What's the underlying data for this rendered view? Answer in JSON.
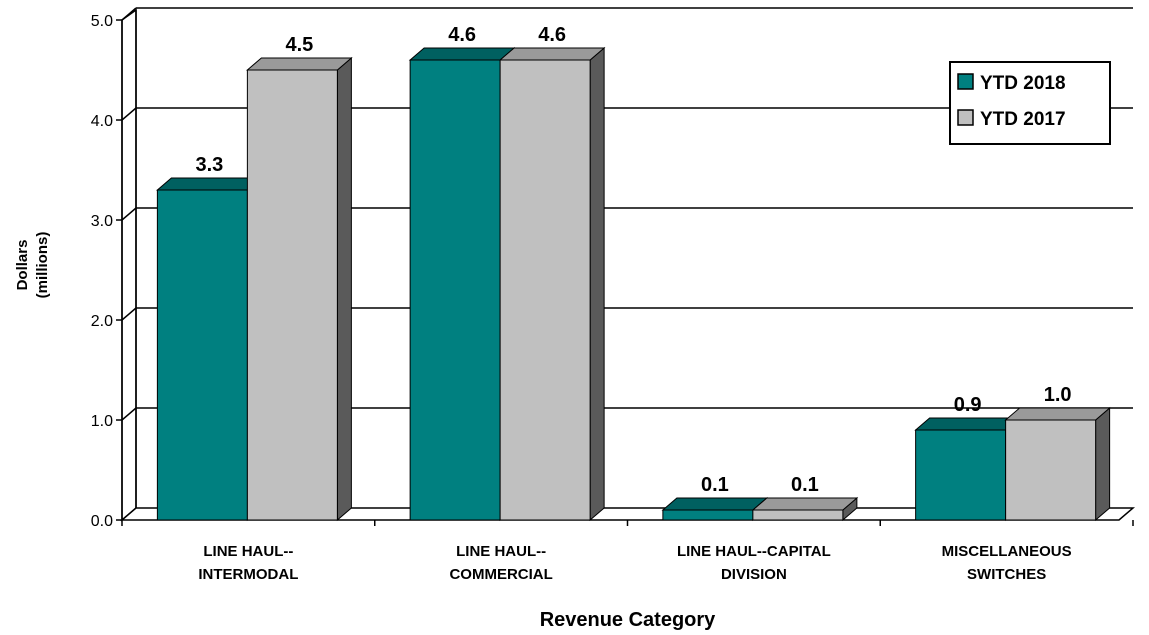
{
  "chart_data": {
    "type": "bar",
    "title": "",
    "xlabel": "Revenue Category",
    "ylabel": [
      "Dollars",
      "(millions)"
    ],
    "ylim": [
      0,
      5
    ],
    "yticks": [
      "0.0",
      "1.0",
      "2.0",
      "3.0",
      "4.0",
      "5.0"
    ],
    "categories": [
      [
        "LINE HAUL--",
        "INTERMODAL"
      ],
      [
        "LINE HAUL--",
        "COMMERCIAL"
      ],
      [
        "LINE HAUL--CAPITAL",
        "DIVISION"
      ],
      [
        "MISCELLANEOUS",
        "SWITCHES"
      ]
    ],
    "series": [
      {
        "name": "YTD 2018",
        "values": [
          3.3,
          4.6,
          0.1,
          0.9
        ],
        "labels": [
          "3.3",
          "4.6",
          "0.1",
          "0.9"
        ]
      },
      {
        "name": "YTD 2017",
        "values": [
          4.5,
          4.6,
          0.1,
          1.0
        ],
        "labels": [
          "4.5",
          "4.6",
          "0.1",
          "1.0"
        ]
      }
    ],
    "legend_position": "top-right",
    "grid": true,
    "style": "3d-clustered-bar"
  },
  "colors": {
    "series_2018_front": "#008080",
    "series_2018_top": "#006060",
    "series_2018_side": "#004a4a",
    "series_2017_front": "#c0c0c0",
    "series_2017_top": "#9a9a9a",
    "series_2017_side": "#5a5a5a",
    "wall_side": "#8a8a8a",
    "grid": "#000000"
  }
}
